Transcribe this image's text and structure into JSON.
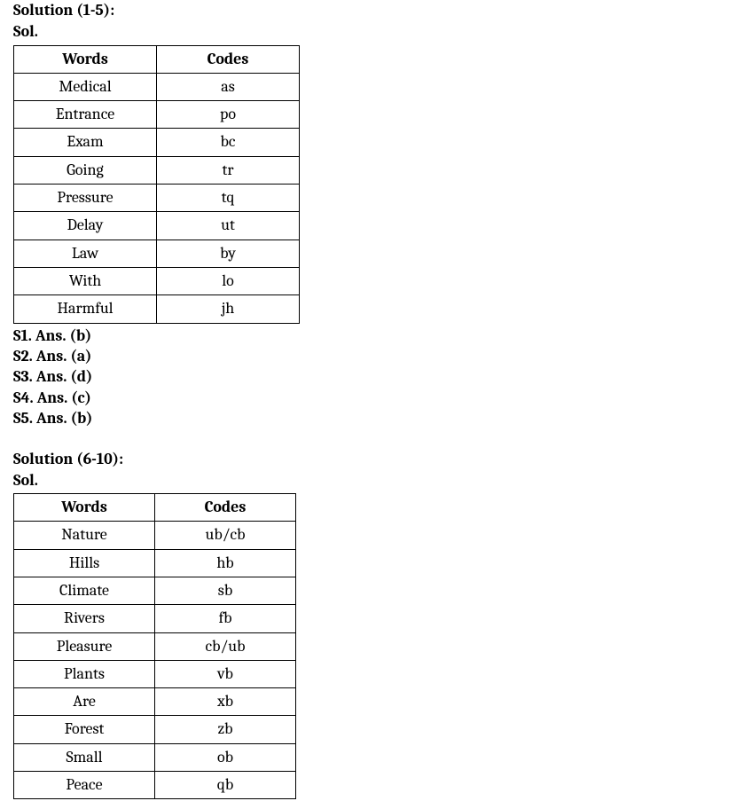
{
  "section1": {
    "title": "Solution (1-5):",
    "subtitle": "Sol.",
    "table": {
      "columns": [
        "Words",
        "Codes"
      ],
      "rows": [
        [
          "Medical",
          "as"
        ],
        [
          "Entrance",
          "po"
        ],
        [
          "Exam",
          "bc"
        ],
        [
          "Going",
          "tr"
        ],
        [
          "Pressure",
          "tq"
        ],
        [
          "Delay",
          "ut"
        ],
        [
          "Law",
          "by"
        ],
        [
          "With",
          "lo"
        ],
        [
          "Harmful",
          "jh"
        ]
      ]
    },
    "answers": [
      "S1. Ans. (b)",
      "S2. Ans. (a)",
      "S3. Ans. (d)",
      "S4. Ans. (c)",
      "S5. Ans. (b)"
    ]
  },
  "section2": {
    "title": "Solution (6-10):",
    "subtitle": "Sol.",
    "table": {
      "columns": [
        "Words",
        "Codes"
      ],
      "rows": [
        [
          "Nature",
          "ub/cb"
        ],
        [
          "Hills",
          "hb"
        ],
        [
          "Climate",
          "sb"
        ],
        [
          "Rivers",
          "fb"
        ],
        [
          "Pleasure",
          "cb/ub"
        ],
        [
          "Plants",
          "vb"
        ],
        [
          "Are",
          "xb"
        ],
        [
          "Forest",
          "zb"
        ],
        [
          "Small",
          "ob"
        ],
        [
          "Peace",
          "qb"
        ]
      ]
    }
  }
}
